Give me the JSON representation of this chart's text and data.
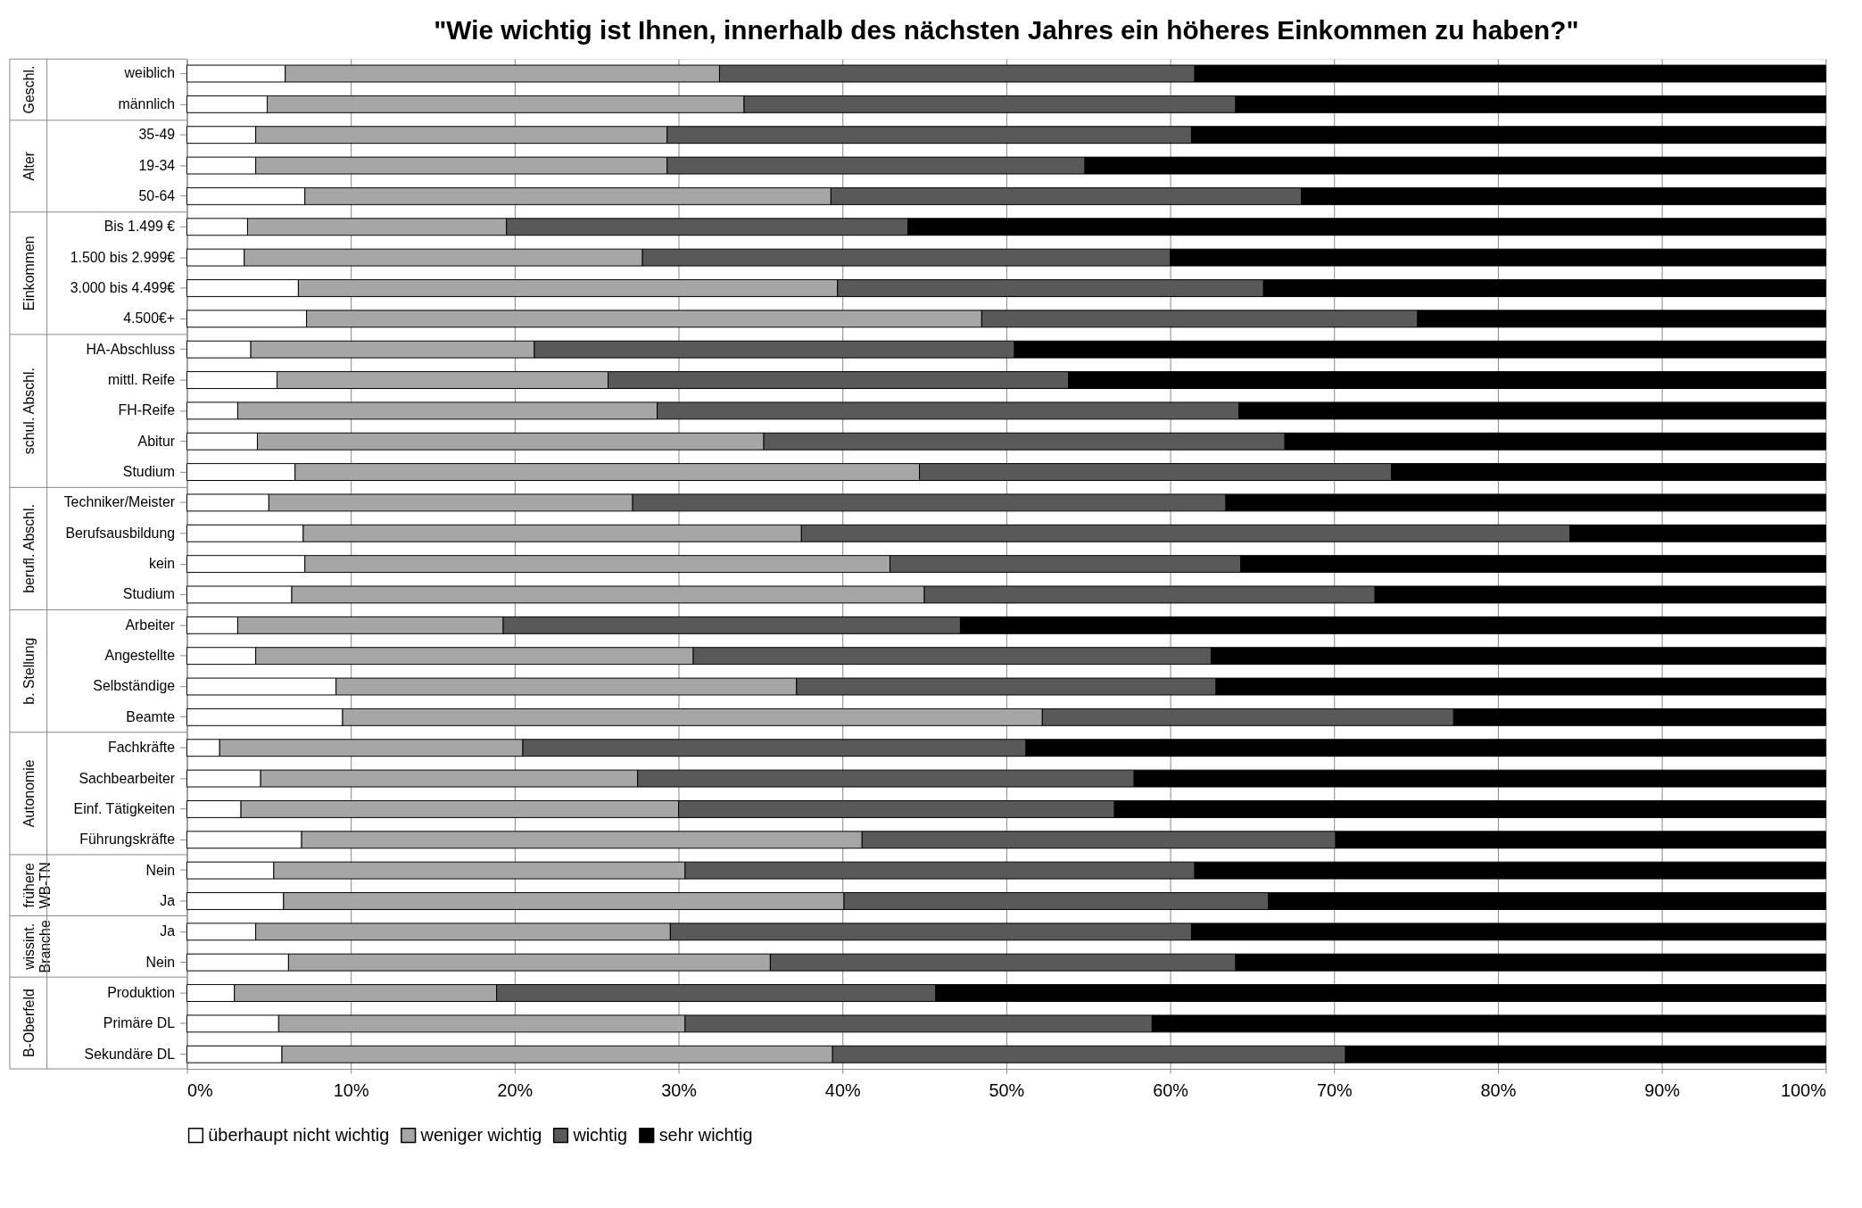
{
  "chart_data": {
    "type": "bar",
    "orientation": "horizontal",
    "stacked": true,
    "title": "\"Wie wichtig ist Ihnen, innerhalb des nächsten Jahres ein höheres Einkommen zu haben?\"",
    "categories": [
      "weiblich",
      "männlich",
      "35-49",
      "19-34",
      "50-64",
      "Bis 1.499 €",
      "1.500 bis 2.999€",
      "3.000 bis 4.499€",
      "4.500€+",
      "HA-Abschluss",
      "mittl. Reife",
      "FH-Reife",
      "Abitur",
      "Studium",
      "Techniker/Meister",
      "Berufsausbildung",
      "kein",
      "Studium",
      "Arbeiter",
      "Angestellte",
      "Selbständige",
      "Beamte",
      "Fachkräfte",
      "Sachbearbeiter",
      "Einf. Tätigkeiten",
      "Führungskräfte",
      "Nein",
      "Ja",
      "Ja",
      "Nein",
      "Produktion",
      "Primäre DL",
      "Sekundäre DL"
    ],
    "series": [
      {
        "name": "überhaupt nicht wichtig",
        "color": "#ffffff",
        "values": [
          6.0,
          4.9,
          4.2,
          4.2,
          7.2,
          3.7,
          3.5,
          6.8,
          7.3,
          3.9,
          5.5,
          3.1,
          4.3,
          6.6,
          5.0,
          7.1,
          7.2,
          6.4,
          3.1,
          4.2,
          9.1,
          9.5,
          2.0,
          4.5,
          3.3,
          7.0,
          5.3,
          5.9,
          4.2,
          6.2,
          2.9,
          5.6,
          5.8
        ]
      },
      {
        "name": "weniger wichtig",
        "color": "#a6a6a6",
        "values": [
          26.5,
          29.1,
          25.1,
          25.1,
          32.1,
          15.8,
          24.3,
          32.9,
          41.2,
          17.3,
          20.2,
          25.6,
          30.9,
          38.1,
          22.2,
          30.4,
          35.7,
          38.6,
          16.2,
          26.7,
          28.1,
          42.7,
          18.5,
          23.0,
          26.7,
          34.2,
          25.1,
          34.2,
          25.3,
          29.4,
          16.0,
          24.8,
          33.6
        ]
      },
      {
        "name": "wichtig",
        "color": "#595959",
        "values": [
          29.0,
          30.0,
          32.0,
          25.5,
          28.7,
          24.5,
          32.2,
          26.0,
          26.6,
          29.3,
          28.1,
          35.5,
          31.8,
          28.8,
          36.2,
          46.9,
          21.4,
          27.5,
          27.9,
          31.6,
          25.6,
          25.1,
          30.7,
          30.3,
          26.6,
          28.9,
          31.1,
          25.9,
          31.8,
          28.4,
          26.8,
          28.5,
          31.3
        ]
      },
      {
        "name": "sehr wichtig",
        "color": "#000000",
        "values": [
          38.5,
          36.0,
          38.7,
          45.2,
          32.0,
          56.0,
          40.0,
          34.3,
          24.9,
          49.5,
          46.2,
          35.8,
          33.0,
          26.5,
          36.6,
          15.6,
          35.7,
          27.5,
          52.8,
          37.5,
          37.2,
          22.7,
          48.8,
          42.2,
          43.4,
          29.9,
          38.5,
          34.0,
          38.7,
          36.0,
          54.3,
          41.1,
          29.3
        ]
      }
    ],
    "annotations": [
      "Geschl.",
      "Alter",
      "Einkommen",
      "schul. Abschl.",
      "berufl. Abschl.",
      "b. Stellung",
      "Autonomie",
      "frühere WB-TN",
      "wissint. Branche",
      "B-Oberfeld"
    ],
    "xlim": [
      0,
      100
    ],
    "xticks": [
      {
        "value": 0,
        "label": "0%"
      },
      {
        "value": 10,
        "label": "10%"
      },
      {
        "value": 20,
        "label": "20%"
      },
      {
        "value": 30,
        "label": "30%"
      },
      {
        "value": 40,
        "label": "40%"
      },
      {
        "value": 50,
        "label": "50%"
      },
      {
        "value": 60,
        "label": "60%"
      },
      {
        "value": 70,
        "label": "70%"
      },
      {
        "value": 80,
        "label": "80%"
      },
      {
        "value": 90,
        "label": "90%"
      },
      {
        "value": 100,
        "label": "100%"
      }
    ],
    "grid": "x",
    "legend": "bottom"
  }
}
